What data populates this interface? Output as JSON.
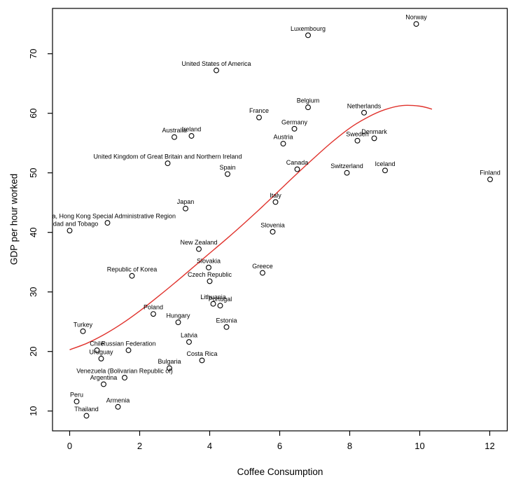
{
  "colors": {
    "background": "#ffffff",
    "foreground": "#000000",
    "curve": "#e0322c"
  },
  "chart_data": {
    "type": "scatter",
    "title": "",
    "xlabel": "Coffee Consumption",
    "ylabel": "GDP per hour worked",
    "xlim": [
      -0.5,
      12.5
    ],
    "ylim": [
      6.5,
      77.5
    ],
    "x_ticks": [
      0,
      2,
      4,
      6,
      8,
      10,
      12
    ],
    "y_ticks": [
      10,
      20,
      30,
      40,
      50,
      60,
      70
    ],
    "grid": false,
    "legend": null,
    "marker": "open-circle",
    "label_position": "above-point",
    "points": [
      {
        "label": "Norway",
        "x": 9.9,
        "y": 75.0
      },
      {
        "label": "Luxembourg",
        "x": 6.81,
        "y": 73.1
      },
      {
        "label": "United States of America",
        "x": 4.19,
        "y": 67.2
      },
      {
        "label": "Belgium",
        "x": 6.81,
        "y": 61.0
      },
      {
        "label": "Netherlands",
        "x": 8.41,
        "y": 60.1
      },
      {
        "label": "France",
        "x": 5.41,
        "y": 59.3
      },
      {
        "label": "Germany",
        "x": 6.42,
        "y": 57.4
      },
      {
        "label": "Ireland",
        "x": 3.48,
        "y": 56.2
      },
      {
        "label": "Australia",
        "x": 2.99,
        "y": 56.0
      },
      {
        "label": "Denmark",
        "x": 8.7,
        "y": 55.8
      },
      {
        "label": "Sweden",
        "x": 8.22,
        "y": 55.4
      },
      {
        "label": "Austria",
        "x": 6.1,
        "y": 54.9
      },
      {
        "label": "United Kingdom of Great Britain and Northern Ireland",
        "x": 2.8,
        "y": 51.6
      },
      {
        "label": "Canada",
        "x": 6.5,
        "y": 50.6
      },
      {
        "label": "Iceland",
        "x": 9.01,
        "y": 50.4
      },
      {
        "label": "Switzerland",
        "x": 7.92,
        "y": 50.0
      },
      {
        "label": "Spain",
        "x": 4.51,
        "y": 49.8
      },
      {
        "label": "Finland",
        "x": 12.01,
        "y": 48.9
      },
      {
        "label": "Italy",
        "x": 5.88,
        "y": 45.1
      },
      {
        "label": "Japan",
        "x": 3.31,
        "y": 44.0
      },
      {
        "label": "China, Hong Kong Special Administrative Region",
        "x": 1.08,
        "y": 41.6
      },
      {
        "label": "Trinidad and Tobago",
        "x": 0.0,
        "y": 40.3
      },
      {
        "label": "Slovenia",
        "x": 5.8,
        "y": 40.1
      },
      {
        "label": "New Zealand",
        "x": 3.69,
        "y": 37.2
      },
      {
        "label": "Slovakia",
        "x": 3.97,
        "y": 34.1
      },
      {
        "label": "Greece",
        "x": 5.51,
        "y": 33.2
      },
      {
        "label": "Republic of Korea",
        "x": 1.78,
        "y": 32.7
      },
      {
        "label": "Czech Republic",
        "x": 4.0,
        "y": 31.8
      },
      {
        "label": "Lithuania",
        "x": 4.1,
        "y": 28.0
      },
      {
        "label": "Portugal",
        "x": 4.3,
        "y": 27.7
      },
      {
        "label": "Poland",
        "x": 2.39,
        "y": 26.3
      },
      {
        "label": "Hungary",
        "x": 3.1,
        "y": 24.9
      },
      {
        "label": "Estonia",
        "x": 4.48,
        "y": 24.1
      },
      {
        "label": "Turkey",
        "x": 0.38,
        "y": 23.4
      },
      {
        "label": "Latvia",
        "x": 3.41,
        "y": 21.6
      },
      {
        "label": "Chile",
        "x": 0.78,
        "y": 20.2
      },
      {
        "label": "Russian Federation",
        "x": 1.68,
        "y": 20.2
      },
      {
        "label": "Uruguay",
        "x": 0.9,
        "y": 18.8
      },
      {
        "label": "Costa Rica",
        "x": 3.78,
        "y": 18.5
      },
      {
        "label": "Bulgaria",
        "x": 2.85,
        "y": 17.2
      },
      {
        "label": "Venezuela (Bolivarian Republic of)",
        "x": 1.57,
        "y": 15.6
      },
      {
        "label": "Argentina",
        "x": 0.97,
        "y": 14.5
      },
      {
        "label": "Peru",
        "x": 0.2,
        "y": 11.6
      },
      {
        "label": "Armenia",
        "x": 1.38,
        "y": 10.7
      },
      {
        "label": "Thailand",
        "x": 0.48,
        "y": 9.2
      }
    ],
    "trend_curve": {
      "name": "smooth-fit",
      "color_key": "curve",
      "points": [
        [
          0,
          20.3
        ],
        [
          0.5,
          21.4
        ],
        [
          1,
          22.9
        ],
        [
          1.5,
          24.7
        ],
        [
          2,
          26.8
        ],
        [
          2.5,
          29.1
        ],
        [
          3,
          31.5
        ],
        [
          3.5,
          34.0
        ],
        [
          4,
          36.5
        ],
        [
          4.5,
          39.0
        ],
        [
          5,
          41.6
        ],
        [
          5.5,
          44.3
        ],
        [
          6,
          47.1
        ],
        [
          6.5,
          49.9
        ],
        [
          7,
          52.6
        ],
        [
          7.5,
          55.2
        ],
        [
          8,
          57.5
        ],
        [
          8.5,
          59.3
        ],
        [
          9,
          60.6
        ],
        [
          9.5,
          61.3
        ],
        [
          10,
          61.2
        ],
        [
          10.35,
          60.7
        ]
      ]
    }
  }
}
